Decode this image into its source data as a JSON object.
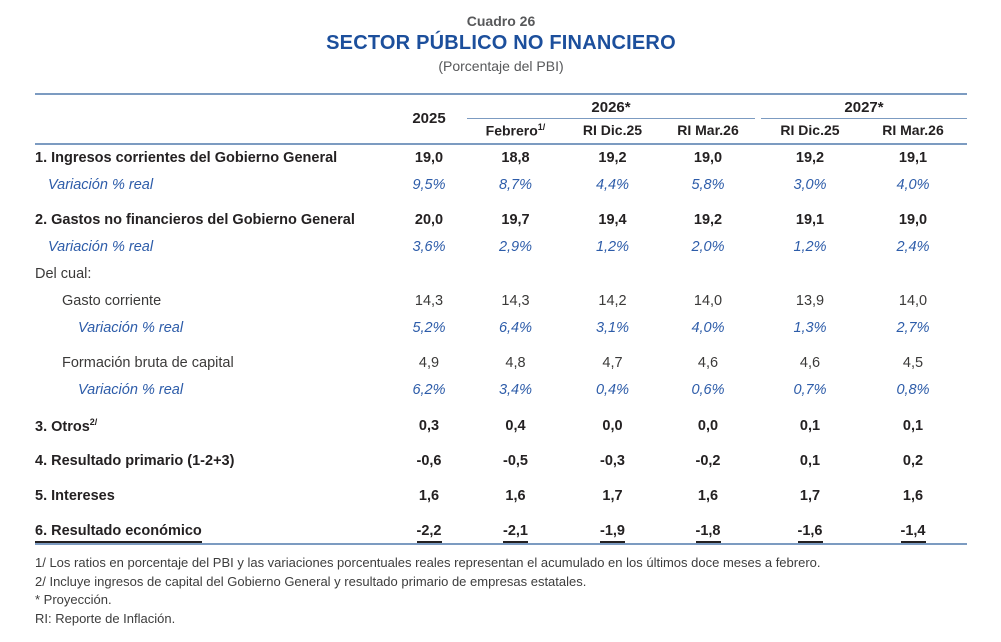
{
  "header": {
    "kicker": "Cuadro 26",
    "title": "SECTOR PÚBLICO NO FINANCIERO",
    "subtitle": "(Porcentaje del PBI)"
  },
  "colors": {
    "title_blue": "#1C4F9C",
    "variation_blue": "#2D5CA9",
    "rule_blue": "#7C9BC1",
    "text_dark": "#242122",
    "text_gray": "#57585A"
  },
  "table": {
    "year_col": "2025",
    "groups": [
      {
        "label": "2026*",
        "subcols": [
          {
            "label": "Febrero",
            "sup": "1/"
          },
          {
            "label": "RI Dic.25"
          },
          {
            "label": "RI Mar.26"
          }
        ]
      },
      {
        "label": "2027*",
        "subcols": [
          {
            "label": "RI Dic.25"
          },
          {
            "label": "RI Mar.26"
          }
        ]
      }
    ],
    "rows": [
      {
        "label": "1. Ingresos corrientes del Gobierno General",
        "style": "bold",
        "indent": 0,
        "values": [
          "19,0",
          "18,8",
          "19,2",
          "19,0",
          "19,2",
          "19,1"
        ]
      },
      {
        "label": "Variación % real",
        "style": "variation",
        "indent": 1,
        "values": [
          "9,5%",
          "8,7%",
          "4,4%",
          "5,8%",
          "3,0%",
          "4,0%"
        ]
      },
      {
        "label": "2. Gastos no financieros del Gobierno General",
        "style": "bold",
        "indent": 0,
        "gap": true,
        "values": [
          "20,0",
          "19,7",
          "19,4",
          "19,2",
          "19,1",
          "19,0"
        ]
      },
      {
        "label": "Variación % real",
        "style": "variation",
        "indent": 1,
        "values": [
          "3,6%",
          "2,9%",
          "1,2%",
          "2,0%",
          "1,2%",
          "2,4%"
        ]
      },
      {
        "label": "Del cual:",
        "style": "plain",
        "indent": 0,
        "values": [
          "",
          "",
          "",
          "",
          "",
          ""
        ]
      },
      {
        "label": "Gasto corriente",
        "style": "plain",
        "indent": 2,
        "values": [
          "14,3",
          "14,3",
          "14,2",
          "14,0",
          "13,9",
          "14,0"
        ]
      },
      {
        "label": "Variación % real",
        "style": "variation",
        "indent": 3,
        "values": [
          "5,2%",
          "6,4%",
          "3,1%",
          "4,0%",
          "1,3%",
          "2,7%"
        ]
      },
      {
        "label": "Formación bruta de capital",
        "style": "plain",
        "indent": 2,
        "gap": true,
        "values": [
          "4,9",
          "4,8",
          "4,7",
          "4,6",
          "4,6",
          "4,5"
        ]
      },
      {
        "label": "Variación % real",
        "style": "variation",
        "indent": 3,
        "values": [
          "6,2%",
          "3,4%",
          "0,4%",
          "0,6%",
          "0,7%",
          "0,8%"
        ]
      },
      {
        "label": "3. Otros",
        "sup": "2/",
        "style": "bold",
        "indent": 0,
        "gap": true,
        "values": [
          "0,3",
          "0,4",
          "0,0",
          "0,0",
          "0,1",
          "0,1"
        ]
      },
      {
        "label": "4. Resultado primario (1-2+3)",
        "style": "bold",
        "indent": 0,
        "gap": true,
        "values": [
          "-0,6",
          "-0,5",
          "-0,3",
          "-0,2",
          "0,1",
          "0,2"
        ]
      },
      {
        "label": "5. Intereses",
        "style": "bold",
        "indent": 0,
        "gap": true,
        "values": [
          "1,6",
          "1,6",
          "1,7",
          "1,6",
          "1,7",
          "1,6"
        ]
      },
      {
        "label": "6. Resultado económico",
        "style": "bold-underline",
        "indent": 0,
        "gap": true,
        "values": [
          "-2,2",
          "-2,1",
          "-1,9",
          "-1,8",
          "-1,6",
          "-1,4"
        ]
      }
    ]
  },
  "footnotes": [
    "1/ Los ratios en porcentaje del PBI y las variaciones porcentuales reales representan el acumulado en los últimos doce meses a febrero.",
    "2/ Incluye ingresos de capital del Gobierno General y resultado primario de empresas estatales.",
    "* Proyección.",
    "RI: Reporte de Inflación."
  ]
}
